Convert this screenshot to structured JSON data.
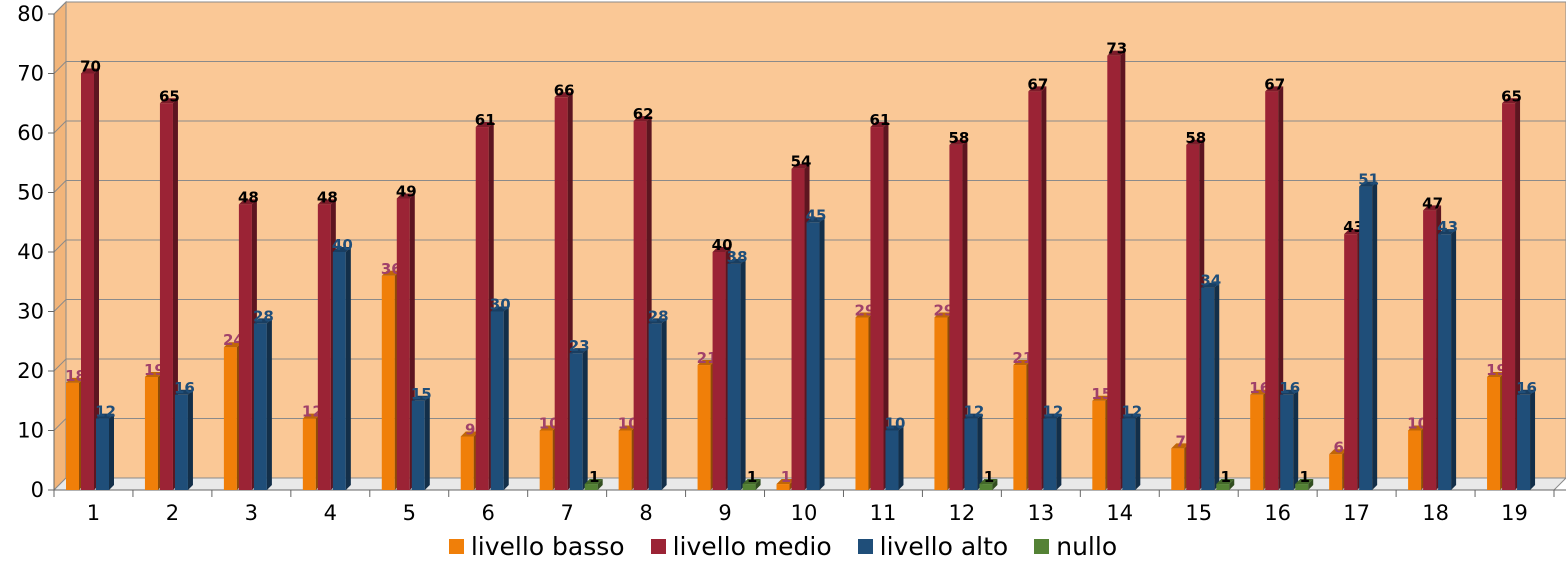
{
  "chart_data": {
    "type": "bar",
    "categories": [
      "1",
      "2",
      "3",
      "4",
      "5",
      "6",
      "7",
      "8",
      "9",
      "10",
      "11",
      "12",
      "13",
      "14",
      "15",
      "16",
      "17",
      "18",
      "19"
    ],
    "series": [
      {
        "name": "livello basso",
        "color": "#F07F09",
        "values": [
          18,
          19,
          24,
          12,
          36,
          9,
          10,
          10,
          21,
          1,
          29,
          29,
          21,
          15,
          7,
          16,
          6,
          10,
          19
        ],
        "label_color": "#A0416A"
      },
      {
        "name": "livello medio",
        "color": "#9B2335",
        "values": [
          70,
          65,
          48,
          48,
          49,
          61,
          66,
          62,
          40,
          54,
          61,
          58,
          67,
          73,
          58,
          67,
          43,
          47,
          65
        ],
        "label_color": "#000000"
      },
      {
        "name": "livello alto",
        "color": "#1F4E79",
        "values": [
          12,
          16,
          28,
          40,
          15,
          30,
          23,
          28,
          38,
          45,
          10,
          12,
          12,
          12,
          34,
          16,
          51,
          43,
          16
        ],
        "label_color": "#1F4E79"
      },
      {
        "name": "nullo",
        "color": "#548235",
        "values": [
          null,
          null,
          null,
          null,
          null,
          null,
          1,
          null,
          1,
          null,
          null,
          1,
          null,
          null,
          1,
          1,
          null,
          null,
          null
        ],
        "label_color": "#000000"
      }
    ],
    "ylim": [
      0,
      80
    ],
    "yticks": [
      0,
      10,
      20,
      30,
      40,
      50,
      60,
      70,
      80
    ],
    "grid": true,
    "legend_position": "bottom",
    "plot_background": "#FAC896",
    "three_d": true
  }
}
